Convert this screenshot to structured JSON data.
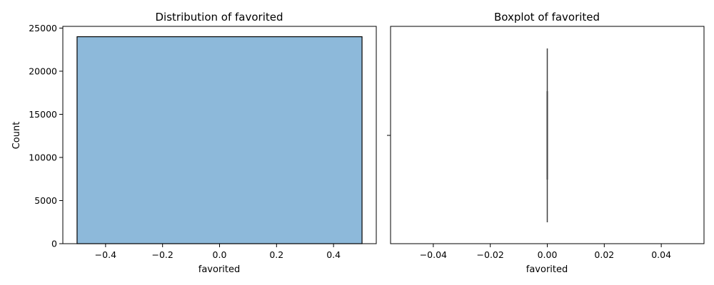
{
  "chart_data": [
    {
      "type": "bar",
      "title": "Distribution of favorited",
      "xlabel": "favorited",
      "ylabel": "Count",
      "bins": [
        {
          "x0": -0.5,
          "x1": 0.5,
          "count": 24000
        }
      ],
      "xlim": [
        -0.55,
        0.55
      ],
      "ylim": [
        0,
        25200
      ],
      "xticks": [
        -0.4,
        -0.2,
        0.0,
        0.2,
        0.4
      ],
      "xtick_labels": [
        "−0.4",
        "−0.2",
        "0.0",
        "0.2",
        "0.4"
      ],
      "yticks": [
        0,
        5000,
        10000,
        15000,
        20000,
        25000
      ],
      "ytick_labels": [
        "0",
        "5000",
        "10000",
        "15000",
        "20000",
        "25000"
      ],
      "bar_fill": "#8db9da",
      "bar_edge": "#000000",
      "grid": false
    },
    {
      "type": "box",
      "title": "Boxplot of favorited",
      "xlabel": "favorited",
      "ylabel": "",
      "box": {
        "min": 0.0,
        "q1": 0.0,
        "median": 0.0,
        "q3": 0.0,
        "max": 0.0
      },
      "xlim": [
        -0.055,
        0.055
      ],
      "xticks": [
        -0.04,
        -0.02,
        0.0,
        0.02,
        0.04
      ],
      "xtick_labels": [
        "−0.04",
        "−0.02",
        "0.00",
        "0.02",
        "0.04"
      ],
      "line_color": "#3f3f3f",
      "grid": false
    }
  ]
}
